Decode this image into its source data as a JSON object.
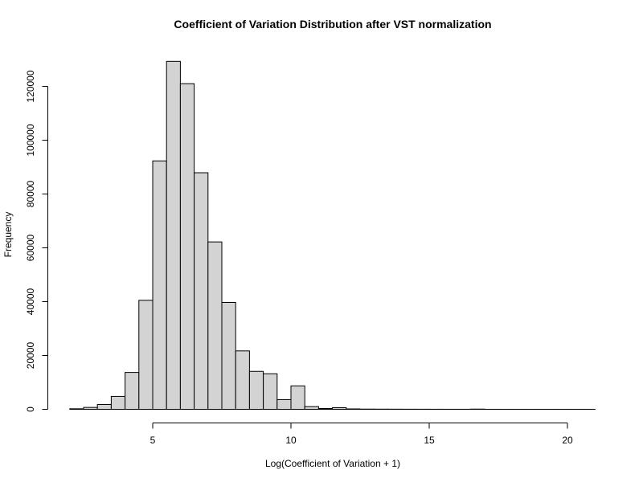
{
  "chart_data": {
    "type": "bar",
    "title": "Coefficient of Variation Distribution after VST normalization",
    "xlabel": "Log(Coefficient of Variation + 1)",
    "ylabel": "Frequency",
    "bin_width": 0.5,
    "x_ticks": [
      5,
      10,
      15,
      20
    ],
    "y_ticks": [
      0,
      20000,
      40000,
      60000,
      80000,
      100000,
      120000
    ],
    "xlim": [
      2,
      21
    ],
    "ylim": [
      0,
      130000
    ],
    "bars": [
      {
        "x0": 2.0,
        "x1": 2.5,
        "count": 200
      },
      {
        "x0": 2.5,
        "x1": 3.0,
        "count": 700
      },
      {
        "x0": 3.0,
        "x1": 3.5,
        "count": 1800
      },
      {
        "x0": 3.5,
        "x1": 4.0,
        "count": 4800
      },
      {
        "x0": 4.0,
        "x1": 4.5,
        "count": 13700
      },
      {
        "x0": 4.5,
        "x1": 5.0,
        "count": 40500
      },
      {
        "x0": 5.0,
        "x1": 5.5,
        "count": 92300
      },
      {
        "x0": 5.5,
        "x1": 6.0,
        "count": 129300
      },
      {
        "x0": 6.0,
        "x1": 6.5,
        "count": 121000
      },
      {
        "x0": 6.5,
        "x1": 7.0,
        "count": 87900
      },
      {
        "x0": 7.0,
        "x1": 7.5,
        "count": 62200
      },
      {
        "x0": 7.5,
        "x1": 8.0,
        "count": 39700
      },
      {
        "x0": 8.0,
        "x1": 8.5,
        "count": 21700
      },
      {
        "x0": 8.5,
        "x1": 9.0,
        "count": 14100
      },
      {
        "x0": 9.0,
        "x1": 9.5,
        "count": 13200
      },
      {
        "x0": 9.5,
        "x1": 10.0,
        "count": 3600
      },
      {
        "x0": 10.0,
        "x1": 10.5,
        "count": 8700
      },
      {
        "x0": 10.5,
        "x1": 11.0,
        "count": 1000
      },
      {
        "x0": 11.0,
        "x1": 11.5,
        "count": 300
      },
      {
        "x0": 11.5,
        "x1": 12.0,
        "count": 600
      },
      {
        "x0": 12.0,
        "x1": 12.5,
        "count": 150
      },
      {
        "x0": 12.5,
        "x1": 13.0,
        "count": 80
      },
      {
        "x0": 13.0,
        "x1": 13.5,
        "count": 60
      },
      {
        "x0": 13.5,
        "x1": 14.0,
        "count": 50
      },
      {
        "x0": 14.0,
        "x1": 14.5,
        "count": 40
      },
      {
        "x0": 14.5,
        "x1": 15.0,
        "count": 30
      },
      {
        "x0": 15.0,
        "x1": 15.5,
        "count": 25
      },
      {
        "x0": 15.5,
        "x1": 16.0,
        "count": 20
      },
      {
        "x0": 16.0,
        "x1": 16.5,
        "count": 20
      },
      {
        "x0": 16.5,
        "x1": 17.0,
        "count": 80
      },
      {
        "x0": 17.0,
        "x1": 17.5,
        "count": 15
      },
      {
        "x0": 17.5,
        "x1": 18.0,
        "count": 10
      },
      {
        "x0": 18.0,
        "x1": 18.5,
        "count": 10
      },
      {
        "x0": 18.5,
        "x1": 19.0,
        "count": 10
      },
      {
        "x0": 19.0,
        "x1": 19.5,
        "count": 10
      },
      {
        "x0": 19.5,
        "x1": 20.0,
        "count": 10
      },
      {
        "x0": 20.0,
        "x1": 20.5,
        "count": 10
      },
      {
        "x0": 20.5,
        "x1": 21.0,
        "count": 10
      }
    ]
  }
}
